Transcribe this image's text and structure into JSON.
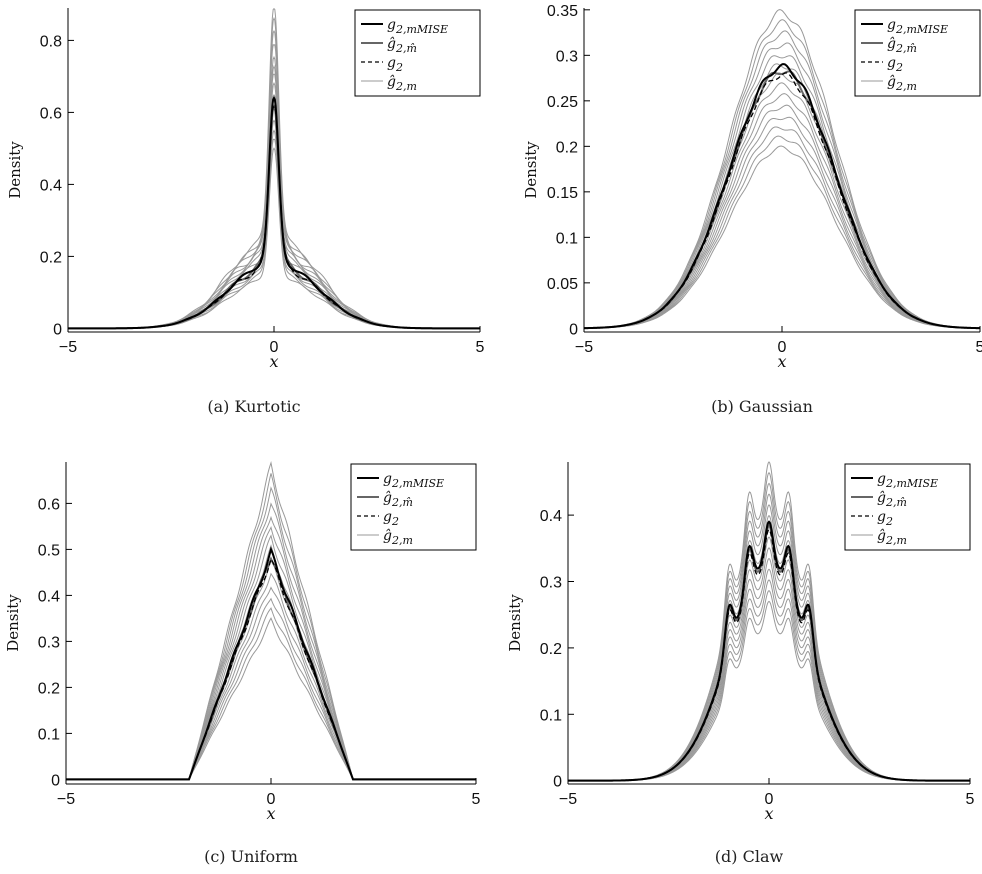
{
  "chart_data": [
    {
      "type": "line",
      "caption": "(a)  Kurtotic",
      "xlabel": "x",
      "ylabel": "Density",
      "xlim": [
        -5,
        5
      ],
      "ylim": [
        -0.01,
        0.89
      ],
      "xticks": [
        -5,
        0,
        5
      ],
      "xtick_labels": [
        "−5",
        "0",
        "5"
      ],
      "yticks": [
        0,
        0.2,
        0.4,
        0.6,
        0.8
      ],
      "ytick_labels": [
        "0",
        "0.2",
        "0.4",
        "0.6",
        "0.8"
      ],
      "legend_position": "top-right",
      "legend": [
        "g2,mMISE",
        "ĝ2,m̂",
        "g2",
        "ĝ2,m"
      ],
      "peak_value": 0.64,
      "band_peak_range": [
        0.5,
        0.89
      ],
      "shoulder_points": [
        [
          -0.75,
          0.27
        ],
        [
          0.75,
          0.27
        ]
      ]
    },
    {
      "type": "line",
      "caption": "(b)  Gaussian",
      "xlabel": "x",
      "ylabel": "Density",
      "xlim": [
        -5,
        5
      ],
      "ylim": [
        -0.004,
        0.352
      ],
      "xticks": [
        -5,
        0,
        5
      ],
      "xtick_labels": [
        "−5",
        "0",
        "5"
      ],
      "yticks": [
        0,
        0.05,
        0.1,
        0.15,
        0.2,
        0.25,
        0.3,
        0.35
      ],
      "ytick_labels": [
        "0",
        "0.05",
        "0.1",
        "0.15",
        "0.2",
        "0.25",
        "0.3",
        "0.35"
      ],
      "legend_position": "top-right",
      "legend": [
        "g2,mMISE",
        "ĝ2,m̂",
        "g2",
        "ĝ2,m"
      ],
      "peak_value": 0.29,
      "band_peak_range": [
        0.2,
        0.35
      ],
      "std": 1.35
    },
    {
      "type": "line",
      "caption": "(c)  Uniform",
      "xlabel": "x",
      "ylabel": "Density",
      "xlim": [
        -5,
        5
      ],
      "ylim": [
        -0.01,
        0.69
      ],
      "xticks": [
        -5,
        0,
        5
      ],
      "xtick_labels": [
        "−5",
        "0",
        "5"
      ],
      "yticks": [
        0,
        0.1,
        0.2,
        0.3,
        0.4,
        0.5,
        0.6
      ],
      "ytick_labels": [
        "0",
        "0.1",
        "0.2",
        "0.3",
        "0.4",
        "0.5",
        "0.6"
      ],
      "legend_position": "top-right",
      "legend": [
        "g2,mMISE",
        "ĝ2,m̂",
        "g2",
        "ĝ2,m"
      ],
      "peak_value": 0.5,
      "band_peak_range": [
        0.35,
        0.69
      ],
      "support": [
        -2,
        2
      ]
    },
    {
      "type": "line",
      "caption": "(d)  Claw",
      "xlabel": "x",
      "ylabel": "Density",
      "xlim": [
        -5,
        5
      ],
      "ylim": [
        -0.005,
        0.48
      ],
      "xticks": [
        -5,
        0,
        5
      ],
      "xtick_labels": [
        "−5",
        "0",
        "5"
      ],
      "yticks": [
        0,
        0.1,
        0.2,
        0.3,
        0.4
      ],
      "ytick_labels": [
        "0",
        "0.1",
        "0.2",
        "0.3",
        "0.4"
      ],
      "legend_position": "top-right",
      "legend": [
        "g2,mMISE",
        "ĝ2,m̂",
        "g2",
        "ĝ2,m"
      ],
      "peak_value": 0.39,
      "band_peak_range": [
        0.27,
        0.48
      ],
      "local_peaks": [
        [
          -1,
          0.26
        ],
        [
          -0.5,
          0.34
        ],
        [
          0,
          0.39
        ],
        [
          0.5,
          0.34
        ],
        [
          1,
          0.26
        ],
        [
          -1.5,
          0.17
        ],
        [
          1.5,
          0.17
        ]
      ]
    }
  ],
  "colors": {
    "mise": "#000000",
    "mhat": "#666666",
    "true": "#000000",
    "band": "#999999",
    "axis": "#000000"
  }
}
